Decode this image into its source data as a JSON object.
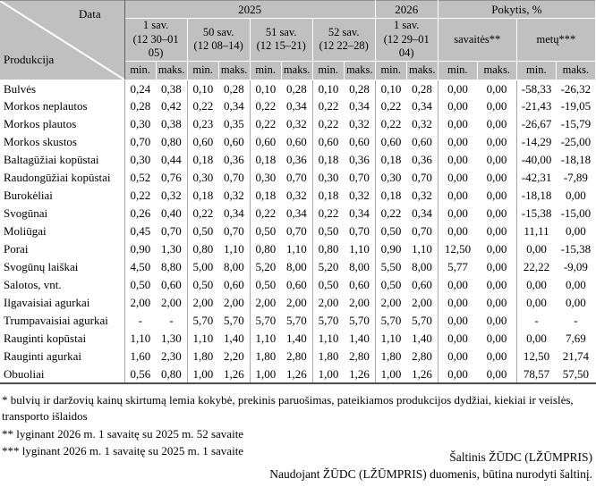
{
  "table": {
    "corner": {
      "data_label": "Data",
      "produkcija_label": "Produkcija"
    },
    "year_2025": "2025",
    "year_2026": "2026",
    "pokytis_label": "Pokytis, %",
    "weeks": [
      {
        "name": "1 sav.",
        "range": "(12 30–01 05)"
      },
      {
        "name": "50 sav.",
        "range": "(12 08–14)"
      },
      {
        "name": "51 sav.",
        "range": "(12 15–21)"
      },
      {
        "name": "52 sav.",
        "range": "(12 22–28)"
      },
      {
        "name": "1 sav.",
        "range": "(12 29–01 04)"
      }
    ],
    "pokytis_cols": [
      "savaitės**",
      "metų***"
    ],
    "min_label": "min.",
    "maks_label": "maks.",
    "rows": [
      {
        "name": "Bulvės",
        "values": [
          "0,24",
          "0,38",
          "0,10",
          "0,28",
          "0,10",
          "0,28",
          "0,10",
          "0,28",
          "0,10",
          "0,28",
          "0,00",
          "0,00",
          "-58,33",
          "-26,32"
        ]
      },
      {
        "name": "Morkos neplautos",
        "values": [
          "0,28",
          "0,42",
          "0,22",
          "0,34",
          "0,22",
          "0,34",
          "0,22",
          "0,34",
          "0,22",
          "0,34",
          "0,00",
          "0,00",
          "-21,43",
          "-19,05"
        ]
      },
      {
        "name": "Morkos plautos",
        "values": [
          "0,30",
          "0,38",
          "0,23",
          "0,35",
          "0,22",
          "0,32",
          "0,22",
          "0,32",
          "0,22",
          "0,32",
          "0,00",
          "0,00",
          "-26,67",
          "-15,79"
        ]
      },
      {
        "name": "Morkos skustos",
        "values": [
          "0,70",
          "0,80",
          "0,60",
          "0,60",
          "0,60",
          "0,60",
          "0,60",
          "0,60",
          "0,60",
          "0,60",
          "0,00",
          "0,00",
          "-14,29",
          "-25,00"
        ]
      },
      {
        "name": "Baltagūžiai kopūstai",
        "values": [
          "0,30",
          "0,44",
          "0,18",
          "0,36",
          "0,18",
          "0,36",
          "0,18",
          "0,36",
          "0,18",
          "0,36",
          "0,00",
          "0,00",
          "-40,00",
          "-18,18"
        ]
      },
      {
        "name": "Raudongūžiai kopūstai",
        "values": [
          "0,52",
          "0,76",
          "0,30",
          "0,70",
          "0,30",
          "0,70",
          "0,30",
          "0,70",
          "0,30",
          "0,70",
          "0,00",
          "0,00",
          "-42,31",
          "-7,89"
        ]
      },
      {
        "name": "Burokėliai",
        "values": [
          "0,22",
          "0,32",
          "0,18",
          "0,32",
          "0,18",
          "0,32",
          "0,18",
          "0,32",
          "0,18",
          "0,32",
          "0,00",
          "0,00",
          "-18,18",
          "0,00"
        ]
      },
      {
        "name": "Svogūnai",
        "values": [
          "0,26",
          "0,40",
          "0,22",
          "0,34",
          "0,22",
          "0,34",
          "0,22",
          "0,34",
          "0,22",
          "0,34",
          "0,00",
          "0,00",
          "-15,38",
          "-15,00"
        ]
      },
      {
        "name": "Moliūgai",
        "values": [
          "0,45",
          "0,70",
          "0,50",
          "0,70",
          "0,50",
          "0,70",
          "0,50",
          "0,70",
          "0,50",
          "0,70",
          "0,00",
          "0,00",
          "11,11",
          "0,00"
        ]
      },
      {
        "name": "Porai",
        "values": [
          "0,90",
          "1,30",
          "0,80",
          "1,10",
          "0,80",
          "1,10",
          "0,80",
          "1,10",
          "0,90",
          "1,10",
          "12,50",
          "0,00",
          "0,00",
          "-15,38"
        ]
      },
      {
        "name": "Svogūnų laiškai",
        "values": [
          "4,50",
          "8,80",
          "5,00",
          "8,00",
          "5,20",
          "8,00",
          "5,20",
          "8,00",
          "5,50",
          "8,00",
          "5,77",
          "0,00",
          "22,22",
          "-9,09"
        ]
      },
      {
        "name": "Salotos, vnt.",
        "values": [
          "0,50",
          "0,60",
          "0,50",
          "0,60",
          "0,50",
          "0,60",
          "0,50",
          "0,60",
          "0,50",
          "0,60",
          "0,00",
          "0,00",
          "0,00",
          "0,00"
        ]
      },
      {
        "name": "Ilgavaisiai agurkai",
        "values": [
          "2,00",
          "2,00",
          "2,00",
          "2,00",
          "2,00",
          "2,00",
          "2,00",
          "2,00",
          "2,00",
          "2,00",
          "0,00",
          "0,00",
          "0,00",
          "0,00"
        ]
      },
      {
        "name": "Trumpavaisiai agurkai",
        "values": [
          "-",
          "-",
          "5,70",
          "5,70",
          "5,70",
          "5,70",
          "5,70",
          "5,70",
          "5,70",
          "5,70",
          "0,00",
          "0,00",
          "-",
          "-"
        ]
      },
      {
        "name": "Rauginti kopūstai",
        "values": [
          "1,10",
          "1,30",
          "1,10",
          "1,40",
          "1,10",
          "1,40",
          "1,10",
          "1,40",
          "1,10",
          "1,40",
          "0,00",
          "0,00",
          "0,00",
          "7,69"
        ]
      },
      {
        "name": "Rauginti agurkai",
        "values": [
          "1,60",
          "2,30",
          "1,80",
          "2,20",
          "1,80",
          "2,80",
          "1,80",
          "2,80",
          "1,80",
          "2,80",
          "0,00",
          "0,00",
          "12,50",
          "21,74"
        ]
      },
      {
        "name": "Obuoliai",
        "values": [
          "0,56",
          "0,80",
          "1,00",
          "1,26",
          "1,00",
          "1,26",
          "1,00",
          "1,26",
          "1,00",
          "1,26",
          "0,00",
          "0,00",
          "78,57",
          "57,50"
        ]
      }
    ]
  },
  "footnotes": [
    "* bulvių ir daržovių kainų skirtumą lemia kokybė, prekinis paruošimas, pateikiamos produkcijos dydžiai, kiekiai ir veislės, transporto išlaidos",
    "** lyginant 2026 m. 1 savaitę su 2025 m. 52 savaite",
    "*** lyginant 2026 m. 1 savaitę su 2025 m. 1 savaite"
  ],
  "source": {
    "line1": "Šaltinis  ŽŪDC (LŽŪMPRIS)",
    "line2": "Naudojant ŽŪDC (LŽŪMPRIS) duomenis, būtina nurodyti šaltinį."
  }
}
